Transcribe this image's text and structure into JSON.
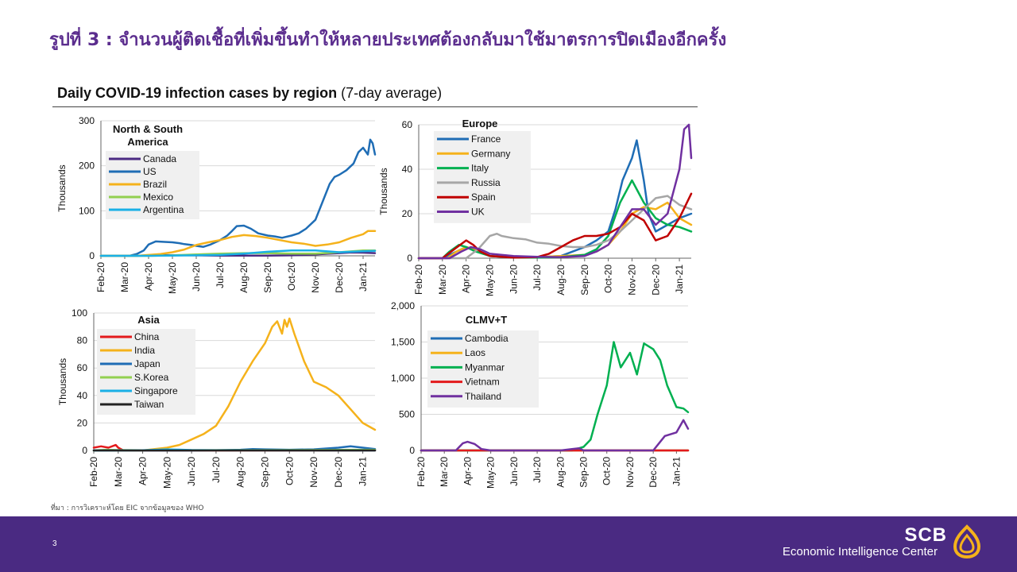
{
  "page": {
    "title": "รูปที่ 3 : จำนวนผู้ติดเชื้อที่เพิ่มขึ้นทำให้หลายประเทศต้องกลับมาใช้มาตรการปิดเมืองอีกครั้ง",
    "chart_title_bold": "Daily COVID-19 infection cases by region",
    "chart_title_rest": " (7-day average)",
    "source": "ที่มา : การวิเคราะห์โดย EIC จากข้อมูลของ WHO",
    "page_number": "3",
    "brand": "SCB",
    "brand_sub": "Economic Intelligence Center"
  },
  "colors": {
    "footer": "#4a2a82",
    "title": "#5b2d8e"
  },
  "months": [
    "Feb-20",
    "Mar-20",
    "Apr-20",
    "May-20",
    "Jun-20",
    "Jul-20",
    "Aug-20",
    "Sep-20",
    "Oct-20",
    "Nov-20",
    "Dec-20",
    "Jan-21"
  ],
  "chart_data": [
    {
      "type": "line",
      "id": "americas",
      "title": "North & South America",
      "ylabel": "Thousands",
      "yticks": [
        0,
        100,
        200,
        300
      ],
      "ytick_labels": [
        "0",
        "100",
        "200",
        "300"
      ],
      "ylim": [
        0,
        300
      ],
      "xlim": [
        0,
        11.5
      ],
      "series": [
        {
          "name": "Canada",
          "color": "#4b2a82",
          "x": [
            0,
            1.5,
            2.5,
            3.5,
            5,
            6,
            7,
            8,
            8.5,
            9,
            9.5,
            10,
            10.5,
            11,
            11.5
          ],
          "y": [
            0,
            0,
            1.5,
            1.2,
            0.4,
            0.4,
            0.6,
            1,
            2,
            3,
            4.5,
            6,
            7.5,
            7,
            6
          ]
        },
        {
          "name": "US",
          "color": "#1f6db5",
          "x": [
            0,
            1.2,
            1.5,
            1.8,
            2,
            2.3,
            2.6,
            3,
            3.3,
            3.5,
            3.8,
            4,
            4.3,
            4.6,
            5,
            5.3,
            5.5,
            5.7,
            6,
            6.3,
            6.6,
            7,
            7.3,
            7.6,
            8,
            8.3,
            8.6,
            9,
            9.3,
            9.6,
            9.8,
            10,
            10.3,
            10.6,
            10.8,
            11,
            11.2,
            11.3,
            11.4,
            11.5
          ],
          "y": [
            0,
            0,
            4,
            12,
            25,
            32,
            31,
            30,
            28,
            26,
            24,
            22,
            20,
            25,
            35,
            45,
            55,
            66,
            67,
            60,
            50,
            45,
            43,
            40,
            45,
            50,
            60,
            80,
            120,
            160,
            175,
            180,
            190,
            205,
            230,
            240,
            225,
            258,
            250,
            225
          ]
        },
        {
          "name": "Brazil",
          "color": "#f5b21b",
          "x": [
            0,
            1.5,
            2,
            2.5,
            3,
            3.5,
            4,
            4.5,
            5,
            5.5,
            6,
            6.5,
            7,
            7.5,
            8,
            8.5,
            9,
            9.5,
            10,
            10.5,
            11,
            11.2,
            11.5
          ],
          "y": [
            0,
            0,
            2,
            4,
            8,
            14,
            24,
            30,
            35,
            42,
            46,
            44,
            40,
            35,
            30,
            27,
            22,
            25,
            30,
            40,
            48,
            55,
            55
          ]
        },
        {
          "name": "Mexico",
          "color": "#92d050",
          "x": [
            0,
            2,
            3,
            4,
            5,
            6,
            7,
            8,
            9,
            10,
            11,
            11.5
          ],
          "y": [
            0,
            0,
            1,
            3,
            5,
            6,
            6,
            5,
            5,
            8,
            12,
            12
          ]
        },
        {
          "name": "Argentina",
          "color": "#1ab0e6",
          "x": [
            0,
            2,
            4,
            5,
            6,
            7,
            8,
            9,
            10,
            11,
            11.5
          ],
          "y": [
            0,
            0,
            1,
            2,
            5,
            9,
            12,
            12,
            8,
            10,
            11
          ]
        }
      ]
    },
    {
      "type": "line",
      "id": "europe",
      "title": "Europe",
      "ylabel": "Thousands",
      "yticks": [
        0,
        20,
        40,
        60
      ],
      "ytick_labels": [
        "0",
        "20",
        "40",
        "60"
      ],
      "ylim": [
        0,
        60
      ],
      "xlim": [
        0,
        11.5
      ],
      "series": [
        {
          "name": "France",
          "color": "#1f6db5",
          "x": [
            0,
            1,
            1.4,
            1.8,
            2,
            2.3,
            2.6,
            3,
            4,
            5,
            6,
            6.5,
            7,
            7.5,
            8,
            8.3,
            8.6,
            9,
            9.2,
            9.5,
            9.7,
            10,
            10.5,
            11,
            11.5
          ],
          "y": [
            0,
            0,
            2,
            4,
            5,
            4,
            3,
            1,
            0.5,
            0.5,
            1,
            3,
            5,
            8,
            12,
            22,
            35,
            45,
            53,
            35,
            20,
            12,
            15,
            18,
            20
          ]
        },
        {
          "name": "Germany",
          "color": "#f5b21b",
          "x": [
            0,
            1.2,
            1.6,
            2,
            2.4,
            3,
            4,
            5,
            6,
            7,
            7.5,
            8,
            8.5,
            9,
            9.5,
            10,
            10.5,
            11,
            11.5
          ],
          "y": [
            0,
            0,
            3,
            5,
            4,
            1,
            0.5,
            0.5,
            1,
            1.5,
            3,
            6,
            12,
            20,
            23,
            22,
            25,
            18,
            15
          ]
        },
        {
          "name": "Italy",
          "color": "#00b050",
          "x": [
            0,
            1,
            1.3,
            1.7,
            2,
            2.4,
            3,
            4,
            5,
            6,
            7,
            7.5,
            8,
            8.5,
            9,
            9.5,
            10,
            10.5,
            11,
            11.5
          ],
          "y": [
            0,
            0,
            3,
            6,
            5,
            3,
            1,
            0.3,
            0.3,
            0.5,
            1.5,
            4,
            10,
            25,
            35,
            25,
            18,
            15,
            14,
            12
          ]
        },
        {
          "name": "Russia",
          "color": "#a6a6a6",
          "x": [
            0,
            2,
            2.5,
            3,
            3.3,
            3.5,
            4,
            4.5,
            5,
            5.5,
            6,
            6.5,
            7,
            7.5,
            8,
            8.5,
            9,
            9.5,
            10,
            10.5,
            11,
            11.5
          ],
          "y": [
            0,
            0,
            4,
            10,
            11,
            10,
            9,
            8.5,
            7,
            6.5,
            5.5,
            5,
            5,
            6,
            8,
            12,
            17,
            22,
            27,
            28,
            24,
            22
          ]
        },
        {
          "name": "Spain",
          "color": "#c00000",
          "x": [
            0,
            1,
            1.5,
            2,
            2.3,
            2.6,
            3,
            4,
            5,
            5.5,
            6,
            6.5,
            7,
            7.5,
            8,
            8.5,
            9,
            9.5,
            10,
            10.5,
            11,
            11.5
          ],
          "y": [
            0,
            0,
            4,
            8,
            6,
            3,
            1,
            0.3,
            0.5,
            2,
            5,
            8,
            10,
            10,
            11,
            14,
            20,
            17,
            8,
            10,
            18,
            29
          ]
        },
        {
          "name": "UK",
          "color": "#7030a0",
          "x": [
            0,
            1.3,
            1.8,
            2.2,
            2.6,
            3,
            4,
            5,
            6,
            7,
            7.5,
            8,
            8.5,
            9,
            9.5,
            10,
            10.5,
            11,
            11.2,
            11.4,
            11.5
          ],
          "y": [
            0,
            0,
            3,
            5,
            4,
            2,
            1,
            0.6,
            0.5,
            1,
            3,
            6,
            14,
            22,
            22,
            15,
            20,
            40,
            58,
            60,
            45
          ]
        }
      ]
    },
    {
      "type": "line",
      "id": "asia",
      "title": "Asia",
      "ylabel": "Thousands",
      "yticks": [
        0,
        20,
        40,
        60,
        80,
        100
      ],
      "ytick_labels": [
        "0",
        "20",
        "40",
        "60",
        "80",
        "100"
      ],
      "ylim": [
        0,
        100
      ],
      "xlim": [
        0,
        11.5
      ],
      "series": [
        {
          "name": "China",
          "color": "#e31a1c",
          "x": [
            0,
            0.3,
            0.6,
            0.9,
            1,
            1.2,
            2,
            11.5
          ],
          "y": [
            2,
            3,
            2,
            4,
            2,
            0.2,
            0,
            0
          ]
        },
        {
          "name": "India",
          "color": "#f5b21b",
          "x": [
            0,
            2,
            3,
            3.5,
            4,
            4.5,
            5,
            5.5,
            6,
            6.5,
            7,
            7.3,
            7.5,
            7.7,
            7.8,
            7.9,
            8,
            8.2,
            8.4,
            8.6,
            9,
            9.5,
            10,
            10.5,
            11,
            11.5
          ],
          "y": [
            0,
            0,
            2,
            4,
            8,
            12,
            18,
            32,
            50,
            65,
            78,
            90,
            94,
            85,
            95,
            90,
            96,
            85,
            75,
            65,
            50,
            46,
            40,
            30,
            20,
            15
          ]
        },
        {
          "name": "Japan",
          "color": "#1f6db5",
          "x": [
            0,
            4,
            5,
            6,
            6.5,
            7,
            8,
            9,
            10,
            10.5,
            11,
            11.5
          ],
          "y": [
            0,
            0,
            0.2,
            0.5,
            1,
            0.8,
            0.5,
            0.8,
            2,
            3,
            2,
            1
          ]
        },
        {
          "name": "S.Korea",
          "color": "#92d050",
          "x": [
            0,
            0.5,
            1,
            2,
            11.5
          ],
          "y": [
            0,
            0.5,
            0.3,
            0.1,
            0.5
          ]
        },
        {
          "name": "Singapore",
          "color": "#1ab0e6",
          "x": [
            0,
            2,
            3,
            3.5,
            4,
            5,
            11.5
          ],
          "y": [
            0,
            0.2,
            0.8,
            0.6,
            0.3,
            0.1,
            0
          ]
        },
        {
          "name": "Taiwan",
          "color": "#222222",
          "x": [
            0,
            11.5
          ],
          "y": [
            0,
            0
          ]
        }
      ]
    },
    {
      "type": "line",
      "id": "clmvt",
      "title": "CLMV+T",
      "ylabel": "",
      "yticks": [
        0,
        500,
        1000,
        1500,
        2000
      ],
      "ytick_labels": [
        "0",
        "500",
        "1,000",
        "1,500",
        "2,000"
      ],
      "ylim": [
        0,
        2000
      ],
      "xlim": [
        0,
        11.5
      ],
      "series": [
        {
          "name": "Cambodia",
          "color": "#1f6db5",
          "x": [
            0,
            11.5
          ],
          "y": [
            0,
            0
          ]
        },
        {
          "name": "Laos",
          "color": "#f5b21b",
          "x": [
            0,
            11.5
          ],
          "y": [
            0,
            0
          ]
        },
        {
          "name": "Myanmar",
          "color": "#00b050",
          "x": [
            0,
            6.5,
            7,
            7.3,
            7.6,
            8,
            8.3,
            8.6,
            9,
            9.3,
            9.6,
            10,
            10.3,
            10.6,
            11,
            11.3,
            11.5
          ],
          "y": [
            0,
            0,
            50,
            150,
            500,
            900,
            1500,
            1150,
            1350,
            1050,
            1480,
            1400,
            1250,
            900,
            600,
            580,
            530
          ]
        },
        {
          "name": "Vietnam",
          "color": "#e31a1c",
          "x": [
            0,
            11.5
          ],
          "y": [
            0,
            0
          ]
        },
        {
          "name": "Thailand",
          "color": "#7030a0",
          "x": [
            0,
            1.5,
            1.8,
            2,
            2.3,
            2.6,
            3,
            4,
            5,
            6,
            6.5,
            6.8,
            7,
            10,
            10.5,
            11,
            11.3,
            11.5
          ],
          "y": [
            0,
            0,
            100,
            120,
            90,
            20,
            0,
            0,
            0,
            0,
            20,
            30,
            0,
            0,
            200,
            250,
            420,
            300
          ]
        }
      ]
    }
  ]
}
